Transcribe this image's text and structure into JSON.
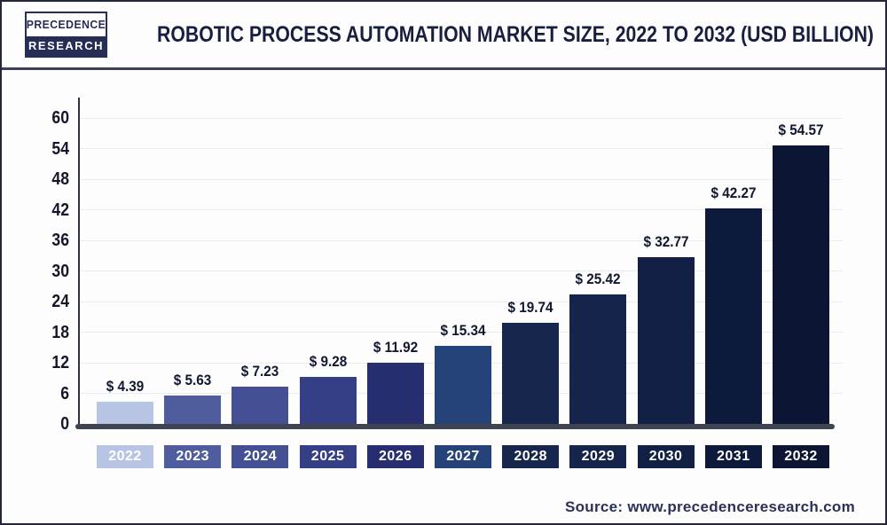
{
  "header": {
    "logo_line1": "PRECEDENCE",
    "logo_line2": "RESEARCH",
    "title": "ROBOTIC PROCESS AUTOMATION MARKET SIZE, 2022 TO 2032 (USD BILLION)"
  },
  "chart_data": {
    "type": "bar",
    "title": "Robotic Process Automation Market Size, 2022 to 2032 (USD Billion)",
    "unit": "USD Billion",
    "categories": [
      "2022",
      "2023",
      "2024",
      "2025",
      "2026",
      "2027",
      "2028",
      "2029",
      "2030",
      "2031",
      "2032"
    ],
    "values": [
      4.39,
      5.63,
      7.23,
      9.28,
      11.92,
      15.34,
      19.74,
      25.42,
      32.77,
      42.27,
      54.57
    ],
    "value_labels": [
      "$ 4.39",
      "$ 5.63",
      "$ 7.23",
      "$ 9.28",
      "$ 11.92",
      "$ 15.34",
      "$ 19.74",
      "$ 25.42",
      "$ 32.77",
      "$ 42.27",
      "$ 54.57"
    ],
    "bar_colors": [
      "#b8c4e4",
      "#4f5d9e",
      "#455094",
      "#353f86",
      "#262e70",
      "#254379",
      "#16264c",
      "#15244a",
      "#122045",
      "#0e1a3c",
      "#0c1534"
    ],
    "xlabel": "",
    "ylabel": "",
    "ylim": [
      0,
      60
    ],
    "yticks": [
      0,
      6,
      12,
      18,
      24,
      30,
      36,
      42,
      48,
      54,
      60
    ],
    "grid": true,
    "legend": false
  },
  "footer": {
    "source": "Source: www.precedenceresearch.com"
  },
  "colors": {
    "title_text": "#181f3e",
    "header_divider": "#3e4156",
    "frame_border": "#23263a",
    "y_axis": "#30343f",
    "x_axis": "#3f4453",
    "gridline": "#ebecf1",
    "value_label_text": "#10182f",
    "year_label_text": "#ffffff",
    "source_text": "#2b3158",
    "logo_navy": "#272e56"
  }
}
